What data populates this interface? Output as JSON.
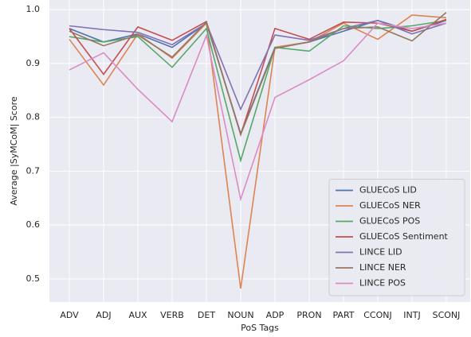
{
  "chart_data": {
    "type": "line",
    "xlabel": "PoS Tags",
    "ylabel": "Average |SyMCoM| Score",
    "categories": [
      "ADV",
      "ADJ",
      "AUX",
      "VERB",
      "DET",
      "NOUN",
      "ADP",
      "PRON",
      "PART",
      "CCONJ",
      "INTJ",
      "SCONJ"
    ],
    "series": [
      {
        "name": "GLUECoS LID",
        "color": "#4c72b0",
        "values": [
          0.965,
          0.94,
          0.955,
          0.93,
          0.975,
          0.77,
          0.93,
          0.94,
          0.96,
          0.98,
          0.96,
          0.98
        ]
      },
      {
        "name": "GLUECoS NER",
        "color": "#dd8452",
        "values": [
          0.945,
          0.86,
          0.955,
          0.91,
          0.975,
          0.482,
          0.93,
          0.94,
          0.975,
          0.945,
          0.99,
          0.985
        ]
      },
      {
        "name": "GLUECoS POS",
        "color": "#55a868",
        "values": [
          0.95,
          0.94,
          0.95,
          0.893,
          0.965,
          0.72,
          0.93,
          0.923,
          0.97,
          0.965,
          0.97,
          0.98
        ]
      },
      {
        "name": "GLUECoS Sentiment",
        "color": "#c44e52",
        "values": [
          0.965,
          0.88,
          0.968,
          0.943,
          0.978,
          0.768,
          0.965,
          0.945,
          0.977,
          0.975,
          0.96,
          0.982
        ]
      },
      {
        "name": "LINCE LID",
        "color": "#8172b3",
        "values": [
          0.97,
          0.963,
          0.958,
          0.935,
          0.975,
          0.815,
          0.953,
          0.943,
          0.965,
          0.98,
          0.955,
          0.975
        ]
      },
      {
        "name": "LINCE NER",
        "color": "#937860",
        "values": [
          0.96,
          0.933,
          0.953,
          0.912,
          0.977,
          0.768,
          0.928,
          0.94,
          0.965,
          0.968,
          0.942,
          0.995
        ]
      },
      {
        "name": "LINCE POS",
        "color": "#da8bc3",
        "values": [
          0.888,
          0.92,
          0.852,
          0.792,
          0.952,
          0.648,
          0.837,
          0.87,
          0.905,
          0.975,
          0.965,
          0.975
        ]
      }
    ],
    "ylim": [
      0.457,
      1.018
    ],
    "yticks": [
      {
        "value": 0.5,
        "label": "0.5"
      },
      {
        "value": 0.6,
        "label": "0.6"
      },
      {
        "value": 0.7,
        "label": "0.7"
      },
      {
        "value": 0.8,
        "label": "0.8"
      },
      {
        "value": 0.9,
        "label": "0.9"
      },
      {
        "value": 1.0,
        "label": "1.0"
      }
    ],
    "grid": true,
    "legend": "lower right"
  }
}
